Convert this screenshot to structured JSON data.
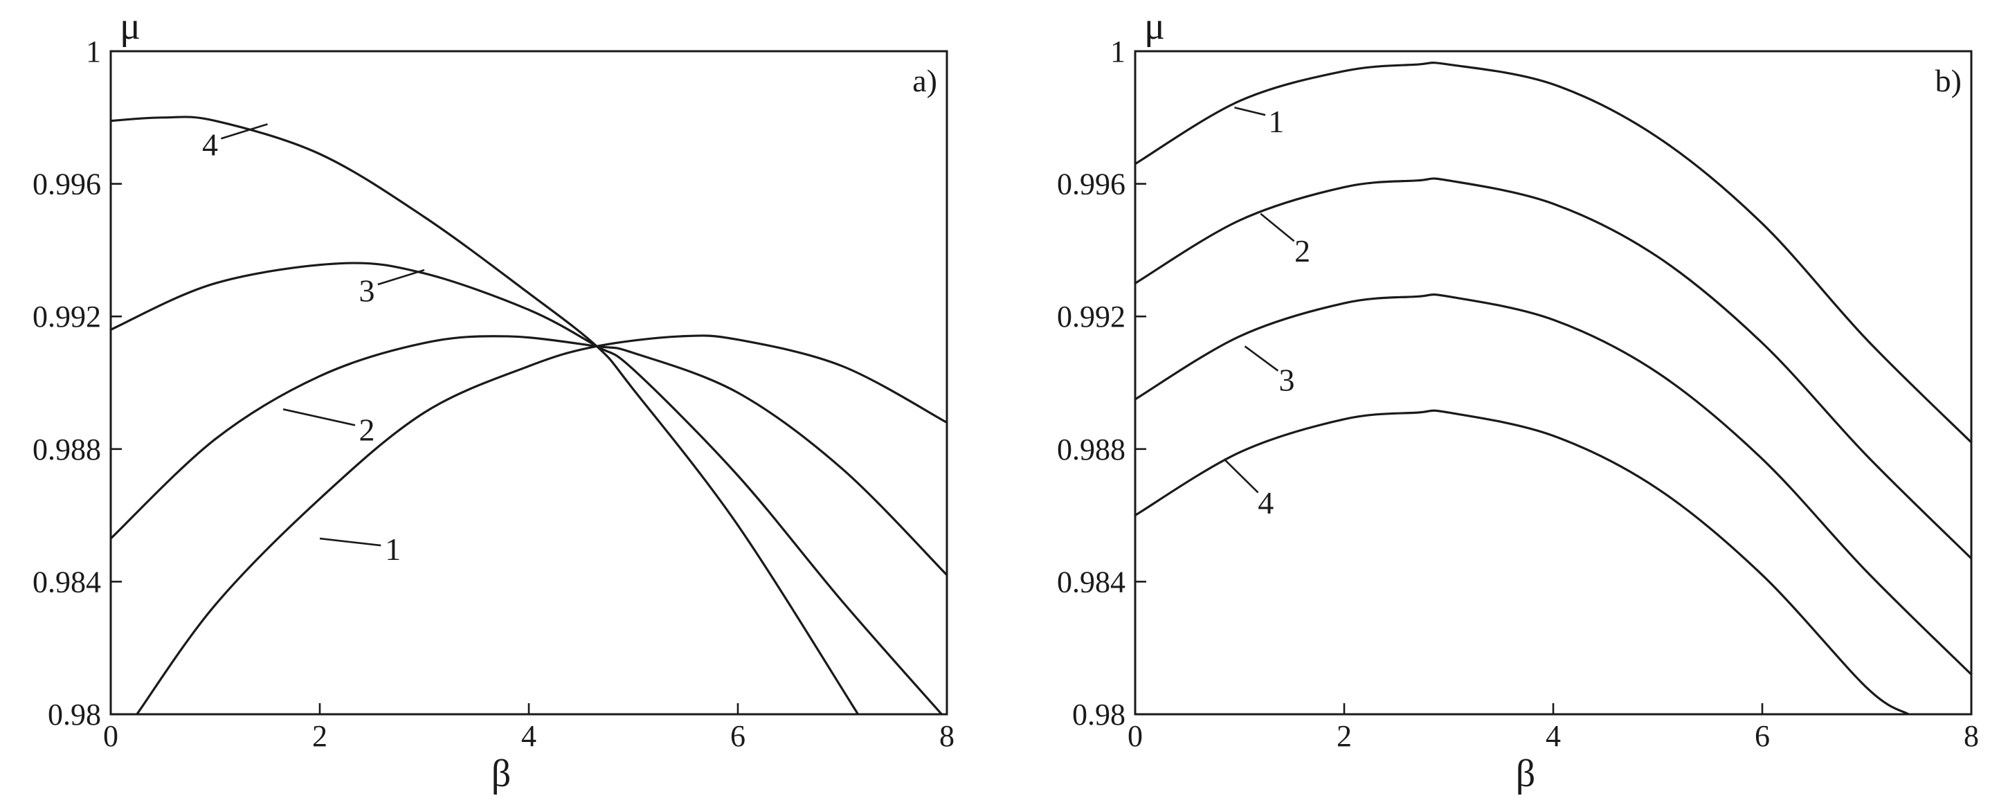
{
  "chart_data": [
    {
      "type": "line",
      "panel_label": "a)",
      "xlabel": "β",
      "ylabel": "μ",
      "xlim": [
        0,
        8
      ],
      "ylim": [
        0.98,
        1
      ],
      "xticks": [
        0,
        2,
        4,
        6,
        8
      ],
      "xtick_labels": [
        "0",
        "2",
        "4",
        "6",
        "8"
      ],
      "yticks": [
        0.98,
        0.984,
        0.988,
        0.992,
        0.996,
        1
      ],
      "ytick_labels": [
        "0.98",
        "0.984",
        "0.988",
        "0.992",
        "0.996",
        "1"
      ],
      "grid": false,
      "series": [
        {
          "name": "1",
          "x": [
            0.25,
            1,
            2,
            3,
            4,
            4.65,
            5.45,
            6,
            7,
            8
          ],
          "y": [
            0.98,
            0.9833,
            0.9865,
            0.9891,
            0.9905,
            0.9911,
            0.9914,
            0.9913,
            0.9905,
            0.9888
          ]
        },
        {
          "name": "2",
          "x": [
            0,
            1,
            2,
            3,
            3.8,
            4.65,
            5,
            6,
            7,
            8
          ],
          "y": [
            0.9853,
            0.9883,
            0.9902,
            0.9912,
            0.9914,
            0.9911,
            0.9909,
            0.9897,
            0.9874,
            0.9842
          ]
        },
        {
          "name": "3",
          "x": [
            0,
            1,
            2.2,
            3,
            4,
            4.65,
            5,
            6,
            7,
            7.95
          ],
          "y": [
            0.9916,
            0.993,
            0.9936,
            0.9933,
            0.9922,
            0.9911,
            0.9904,
            0.9872,
            0.9834,
            0.98
          ]
        },
        {
          "name": "4",
          "x": [
            0,
            0.5,
            1,
            2,
            3,
            4,
            4.65,
            5,
            6,
            7.15
          ],
          "y": [
            0.9979,
            0.998,
            0.9979,
            0.9969,
            0.995,
            0.9927,
            0.9911,
            0.9898,
            0.9857,
            0.98
          ]
        }
      ],
      "labels": [
        {
          "series": "1",
          "text": "1",
          "x": 2.7,
          "y": 0.9847,
          "anchor_x": 2.0,
          "anchor_y": 0.9853
        },
        {
          "series": "2",
          "text": "2",
          "x": 2.45,
          "y": 0.9883,
          "anchor_x": 1.65,
          "anchor_y": 0.9892
        },
        {
          "series": "3",
          "text": "3",
          "x": 2.45,
          "y": 0.9925,
          "anchor_x": 3.0,
          "anchor_y": 0.9934
        },
        {
          "series": "4",
          "text": "4",
          "x": 0.95,
          "y": 0.9969,
          "anchor_x": 1.5,
          "anchor_y": 0.9978
        }
      ]
    },
    {
      "type": "line",
      "panel_label": "b)",
      "xlabel": "β",
      "ylabel": "μ",
      "xlim": [
        0,
        8
      ],
      "ylim": [
        0.98,
        1
      ],
      "xticks": [
        0,
        2,
        4,
        6,
        8
      ],
      "xtick_labels": [
        "0",
        "2",
        "4",
        "6",
        "8"
      ],
      "yticks": [
        0.98,
        0.984,
        0.988,
        0.992,
        0.996,
        1
      ],
      "ytick_labels": [
        "0.98",
        "0.984",
        "0.988",
        "0.992",
        "0.996",
        "1"
      ],
      "grid": false,
      "series": [
        {
          "name": "1",
          "x": [
            0,
            1,
            2,
            2.7,
            3,
            4,
            5,
            6,
            7,
            8
          ],
          "y": [
            0.9966,
            0.9985,
            0.9994,
            0.9996,
            0.9996,
            0.999,
            0.9974,
            0.9948,
            0.9913,
            0.9882
          ]
        },
        {
          "name": "2",
          "x": [
            0,
            1,
            2,
            2.7,
            3,
            4,
            5,
            6,
            7,
            8
          ],
          "y": [
            0.993,
            0.9949,
            0.9959,
            0.9961,
            0.9961,
            0.9954,
            0.9938,
            0.9912,
            0.9878,
            0.9847
          ]
        },
        {
          "name": "3",
          "x": [
            0,
            1,
            2,
            2.7,
            3,
            4,
            5,
            6,
            7,
            8
          ],
          "y": [
            0.9895,
            0.9914,
            0.9924,
            0.9926,
            0.9926,
            0.9919,
            0.9903,
            0.9877,
            0.9843,
            0.9812
          ]
        },
        {
          "name": "4",
          "x": [
            0,
            1,
            2,
            2.7,
            3,
            4,
            5,
            6,
            7,
            7.4
          ],
          "y": [
            0.986,
            0.9879,
            0.9889,
            0.9891,
            0.9891,
            0.9884,
            0.9868,
            0.9842,
            0.9808,
            0.98
          ]
        }
      ],
      "labels": [
        {
          "series": "1",
          "text": "1",
          "x": 1.35,
          "y": 0.9976,
          "anchor_x": 0.95,
          "anchor_y": 0.9983
        },
        {
          "series": "2",
          "text": "2",
          "x": 1.6,
          "y": 0.9937,
          "anchor_x": 1.2,
          "anchor_y": 0.9951
        },
        {
          "series": "3",
          "text": "3",
          "x": 1.45,
          "y": 0.9898,
          "anchor_x": 1.05,
          "anchor_y": 0.9911
        },
        {
          "series": "4",
          "text": "4",
          "x": 1.25,
          "y": 0.9861,
          "anchor_x": 0.85,
          "anchor_y": 0.9877
        }
      ]
    }
  ]
}
